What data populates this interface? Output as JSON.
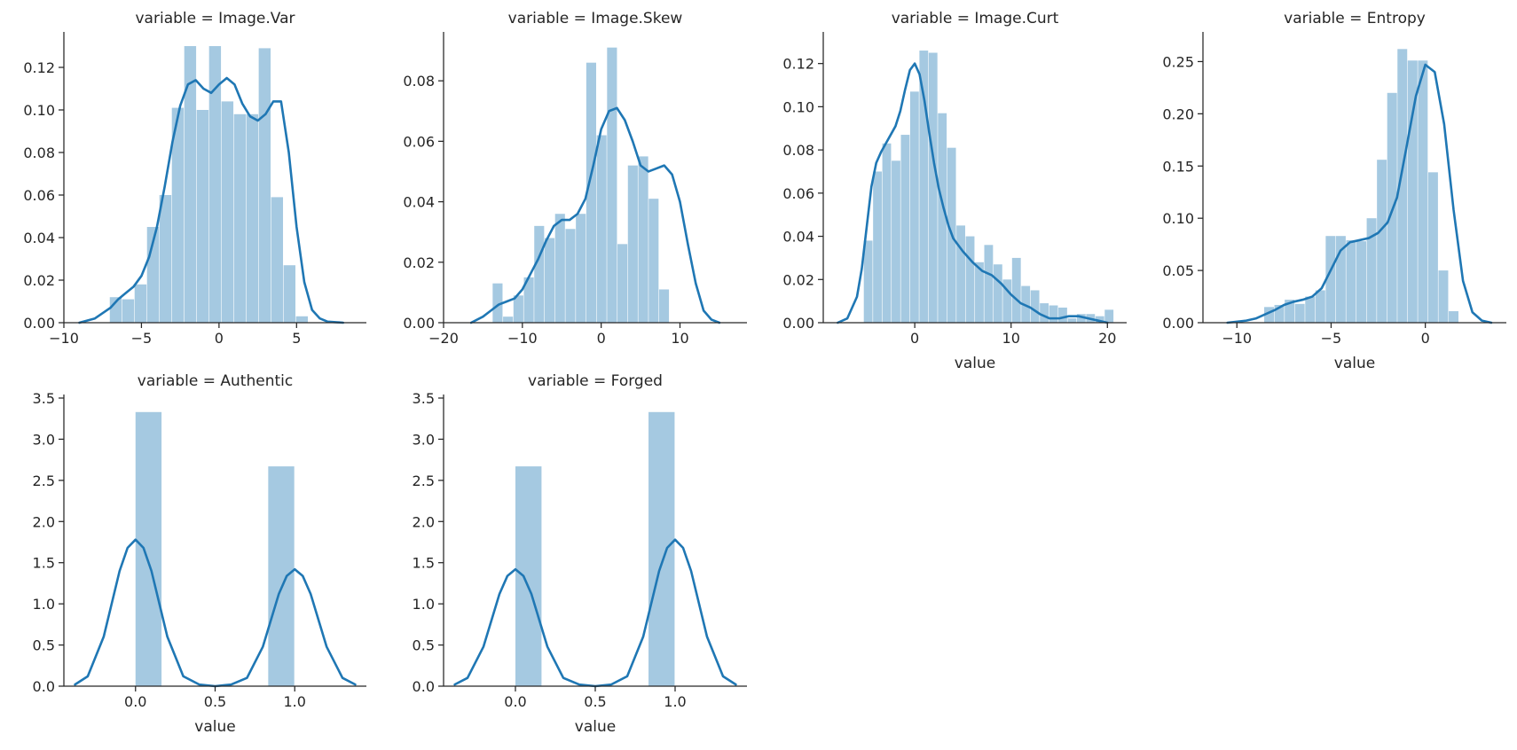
{
  "chart_data": [
    {
      "type": "histogram",
      "title": "variable = Image.Var",
      "xlabel": "",
      "xlim": [
        -10,
        9.5
      ],
      "ylim": [
        0,
        0.135
      ],
      "xticks": [
        -10,
        -5,
        0,
        5
      ],
      "xtick_labels": [
        "−10",
        "−5",
        "0",
        "5"
      ],
      "yticks": [
        0,
        0.02,
        0.04,
        0.06,
        0.08,
        0.1,
        0.12
      ],
      "ytick_labels": [
        "0.00",
        "0.02",
        "0.04",
        "0.06",
        "0.08",
        "0.10",
        "0.12"
      ],
      "bins": {
        "start": -7.04,
        "width": 0.8,
        "values": [
          0.012,
          0.011,
          0.018,
          0.045,
          0.06,
          0.101,
          0.13,
          0.1,
          0.13,
          0.104,
          0.098,
          0.098,
          0.129,
          0.059,
          0.027,
          0.003
        ]
      },
      "kde": {
        "x": [
          -9.0,
          -8.0,
          -7.0,
          -6.5,
          -6.0,
          -5.5,
          -5.0,
          -4.5,
          -4.0,
          -3.5,
          -3.0,
          -2.5,
          -2.0,
          -1.5,
          -1.0,
          -0.5,
          0.0,
          0.5,
          1.0,
          1.5,
          2.0,
          2.5,
          3.0,
          3.5,
          4.0,
          4.5,
          5.0,
          5.5,
          6.0,
          6.5,
          7.0,
          8.0
        ],
        "y": [
          0.0,
          0.002,
          0.007,
          0.011,
          0.014,
          0.017,
          0.022,
          0.031,
          0.045,
          0.064,
          0.085,
          0.102,
          0.112,
          0.114,
          0.11,
          0.108,
          0.112,
          0.115,
          0.112,
          0.103,
          0.097,
          0.095,
          0.098,
          0.104,
          0.104,
          0.08,
          0.045,
          0.019,
          0.006,
          0.002,
          0.0005,
          0.0
        ]
      }
    },
    {
      "type": "histogram",
      "title": "variable = Image.Skew",
      "xlabel": "",
      "xlim": [
        -20,
        18.5
      ],
      "ylim": [
        0,
        0.095
      ],
      "xticks": [
        -20,
        -10,
        0,
        10
      ],
      "xtick_labels": [
        "−20",
        "−10",
        "0",
        "10"
      ],
      "yticks": [
        0,
        0.02,
        0.04,
        0.06,
        0.08
      ],
      "ytick_labels": [
        "0.00",
        "0.02",
        "0.04",
        "0.06",
        "0.08"
      ],
      "bins": {
        "start": -13.77,
        "width": 1.32,
        "values": [
          0.013,
          0.002,
          0.009,
          0.015,
          0.032,
          0.028,
          0.036,
          0.031,
          0.036,
          0.086,
          0.062,
          0.091,
          0.026,
          0.052,
          0.055,
          0.041,
          0.011
        ]
      },
      "kde": {
        "x": [
          -16.5,
          -15.0,
          -14.0,
          -13.0,
          -12.0,
          -11.0,
          -10.0,
          -9.0,
          -8.0,
          -7.0,
          -6.0,
          -5.0,
          -4.0,
          -3.0,
          -2.0,
          -1.0,
          0.0,
          1.0,
          2.0,
          3.0,
          4.0,
          5.0,
          6.0,
          7.0,
          8.0,
          9.0,
          10.0,
          11.0,
          12.0,
          13.0,
          14.0,
          15.0
        ],
        "y": [
          0.0,
          0.002,
          0.004,
          0.006,
          0.007,
          0.008,
          0.011,
          0.016,
          0.021,
          0.027,
          0.032,
          0.034,
          0.034,
          0.036,
          0.041,
          0.052,
          0.064,
          0.07,
          0.071,
          0.067,
          0.06,
          0.052,
          0.05,
          0.051,
          0.052,
          0.049,
          0.04,
          0.026,
          0.013,
          0.004,
          0.001,
          0.0
        ]
      }
    },
    {
      "type": "histogram",
      "title": "variable = Image.Curt",
      "xlabel": "value",
      "xlim": [
        -9.5,
        22
      ],
      "ylim": [
        0,
        0.133
      ],
      "xticks": [
        0,
        10,
        20
      ],
      "xtick_labels": [
        "0",
        "10",
        "20"
      ],
      "yticks": [
        0,
        0.02,
        0.04,
        0.06,
        0.08,
        0.1,
        0.12
      ],
      "ytick_labels": [
        "0.00",
        "0.02",
        "0.04",
        "0.06",
        "0.08",
        "0.10",
        "0.12"
      ],
      "bins": {
        "start": -5.29,
        "width": 0.962,
        "values": [
          0.038,
          0.07,
          0.083,
          0.075,
          0.087,
          0.107,
          0.126,
          0.125,
          0.097,
          0.081,
          0.045,
          0.04,
          0.028,
          0.036,
          0.027,
          0.02,
          0.03,
          0.017,
          0.015,
          0.009,
          0.008,
          0.007,
          0.002,
          0.004,
          0.004,
          0.003,
          0.006
        ]
      },
      "kde": {
        "x": [
          -8.0,
          -7.0,
          -6.0,
          -5.5,
          -5.0,
          -4.5,
          -4.0,
          -3.5,
          -3.0,
          -2.5,
          -2.0,
          -1.5,
          -1.0,
          -0.5,
          0.0,
          0.5,
          1.0,
          1.5,
          2.0,
          2.5,
          3.0,
          3.5,
          4.0,
          5.0,
          6.0,
          7.0,
          8.0,
          9.0,
          10.0,
          11.0,
          12.0,
          13.0,
          14.0,
          15.0,
          16.0,
          17.0,
          18.0,
          19.0,
          20.0
        ],
        "y": [
          0.0,
          0.002,
          0.012,
          0.025,
          0.044,
          0.063,
          0.074,
          0.079,
          0.083,
          0.087,
          0.091,
          0.098,
          0.108,
          0.117,
          0.12,
          0.115,
          0.103,
          0.088,
          0.074,
          0.062,
          0.053,
          0.045,
          0.039,
          0.033,
          0.028,
          0.024,
          0.022,
          0.018,
          0.013,
          0.009,
          0.007,
          0.004,
          0.002,
          0.002,
          0.003,
          0.003,
          0.002,
          0.001,
          0.0
        ]
      }
    },
    {
      "type": "histogram",
      "title": "variable = Entropy",
      "xlabel": "value",
      "xlim": [
        -11.8,
        4.3
      ],
      "ylim": [
        0,
        0.275
      ],
      "xticks": [
        -10,
        -5,
        0
      ],
      "xtick_labels": [
        "−10",
        "−5",
        "0"
      ],
      "yticks": [
        0,
        0.05,
        0.1,
        0.15,
        0.2,
        0.25
      ],
      "ytick_labels": [
        "0.00",
        "0.05",
        "0.10",
        "0.15",
        "0.20",
        "0.25"
      ],
      "bins": {
        "start": -8.55,
        "width": 0.544,
        "values": [
          0.015,
          0.017,
          0.022,
          0.018,
          0.025,
          0.031,
          0.083,
          0.083,
          0.079,
          0.078,
          0.1,
          0.156,
          0.22,
          0.262,
          0.251,
          0.251,
          0.144,
          0.05,
          0.011
        ]
      },
      "kde": {
        "x": [
          -10.5,
          -9.5,
          -9.0,
          -8.5,
          -8.0,
          -7.5,
          -7.0,
          -6.5,
          -6.0,
          -5.5,
          -5.0,
          -4.5,
          -4.0,
          -3.5,
          -3.0,
          -2.5,
          -2.0,
          -1.5,
          -1.0,
          -0.5,
          0.0,
          0.5,
          1.0,
          1.5,
          2.0,
          2.5,
          3.0,
          3.5
        ],
        "y": [
          0.0,
          0.002,
          0.004,
          0.008,
          0.012,
          0.017,
          0.02,
          0.022,
          0.025,
          0.033,
          0.051,
          0.069,
          0.077,
          0.079,
          0.081,
          0.086,
          0.096,
          0.12,
          0.168,
          0.217,
          0.247,
          0.24,
          0.19,
          0.108,
          0.04,
          0.01,
          0.002,
          0.0
        ]
      }
    },
    {
      "type": "histogram",
      "title": "variable = Authentic",
      "xlabel": "value",
      "xlim": [
        -0.45,
        1.45
      ],
      "ylim": [
        0,
        3.5
      ],
      "xticks": [
        0,
        0.5,
        1
      ],
      "xtick_labels": [
        "0.0",
        "0.5",
        "1.0"
      ],
      "yticks": [
        0,
        0.5,
        1,
        1.5,
        2,
        2.5,
        3,
        3.5
      ],
      "ytick_labels": [
        "0.0",
        "0.5",
        "1.0",
        "1.5",
        "2.0",
        "2.5",
        "3.0",
        "3.5"
      ],
      "bins": {
        "start": 0,
        "width": 0.1667,
        "values": [
          3.33,
          0,
          0,
          0,
          0,
          2.67
        ]
      },
      "kde": {
        "x": [
          -0.38,
          -0.3,
          -0.2,
          -0.1,
          -0.05,
          0.0,
          0.05,
          0.1,
          0.2,
          0.3,
          0.4,
          0.5,
          0.6,
          0.7,
          0.8,
          0.9,
          0.95,
          1.0,
          1.05,
          1.1,
          1.2,
          1.3,
          1.38
        ],
        "y": [
          0.02,
          0.12,
          0.6,
          1.4,
          1.68,
          1.78,
          1.68,
          1.4,
          0.6,
          0.12,
          0.02,
          0.0,
          0.02,
          0.1,
          0.48,
          1.12,
          1.34,
          1.42,
          1.34,
          1.12,
          0.48,
          0.1,
          0.02
        ]
      }
    },
    {
      "type": "histogram",
      "title": "variable = Forged",
      "xlabel": "value",
      "xlim": [
        -0.45,
        1.45
      ],
      "ylim": [
        0,
        3.5
      ],
      "xticks": [
        0,
        0.5,
        1
      ],
      "xtick_labels": [
        "0.0",
        "0.5",
        "1.0"
      ],
      "yticks": [
        0,
        0.5,
        1,
        1.5,
        2,
        2.5,
        3,
        3.5
      ],
      "ytick_labels": [
        "0.0",
        "0.5",
        "1.0",
        "1.5",
        "2.0",
        "2.5",
        "3.0",
        "3.5"
      ],
      "bins": {
        "start": 0,
        "width": 0.1667,
        "values": [
          2.67,
          0,
          0,
          0,
          0,
          3.33
        ]
      },
      "kde": {
        "x": [
          -0.38,
          -0.3,
          -0.2,
          -0.1,
          -0.05,
          0.0,
          0.05,
          0.1,
          0.2,
          0.3,
          0.4,
          0.5,
          0.6,
          0.7,
          0.8,
          0.9,
          0.95,
          1.0,
          1.05,
          1.1,
          1.2,
          1.3,
          1.38
        ],
        "y": [
          0.02,
          0.1,
          0.48,
          1.12,
          1.34,
          1.42,
          1.34,
          1.12,
          0.48,
          0.1,
          0.02,
          0.0,
          0.02,
          0.12,
          0.6,
          1.4,
          1.68,
          1.78,
          1.68,
          1.4,
          0.6,
          0.12,
          0.02
        ]
      }
    }
  ]
}
